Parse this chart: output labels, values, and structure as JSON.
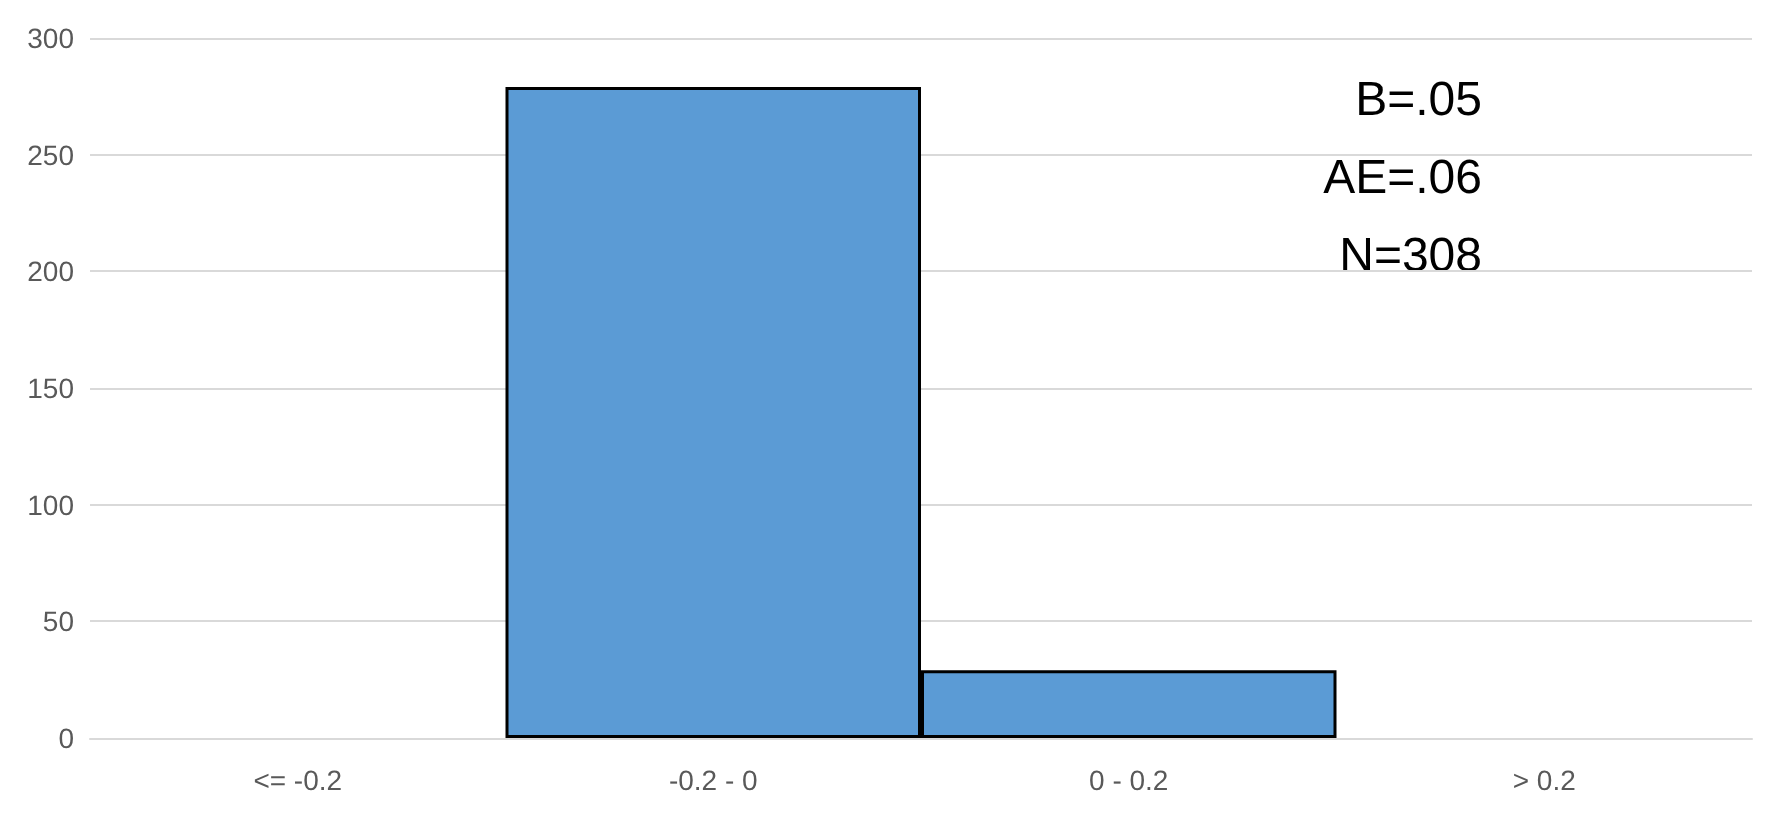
{
  "chart_data": {
    "type": "bar",
    "categories": [
      "<= -0.2",
      "-0.2 - 0",
      "0 - 0.2",
      "> 0.2"
    ],
    "values": [
      0,
      279,
      29,
      0
    ],
    "color": "#5b9bd5",
    "ylim": [
      0,
      300
    ],
    "yticks": [
      0,
      50,
      100,
      150,
      200,
      250,
      300
    ],
    "grid": "y",
    "annotations": [
      "B=.05",
      "AE=.06",
      "N=308"
    ]
  }
}
